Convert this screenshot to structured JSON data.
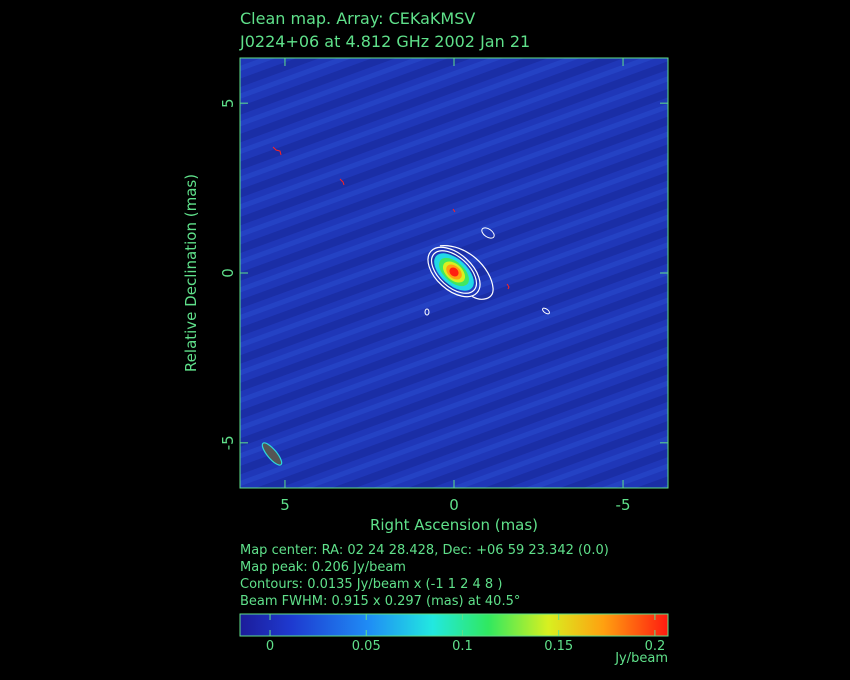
{
  "chart_data": {
    "type": "image",
    "title": "Clean map.  Array: CEKaKMSV",
    "subtitle": "J0224+06 at 4.812 GHz 2002 Jan 21",
    "x_label": "Right Ascension  (mas)",
    "y_label": "Relative Declination  (mas)",
    "xlim": [
      6.33,
      -6.33
    ],
    "xticks": [
      5,
      0,
      -5
    ],
    "ylim": [
      -6.33,
      6.33
    ],
    "yticks": [
      -5,
      0,
      5
    ],
    "info": [
      "Map center:  RA: 02 24 28.428,  Dec: +06 59 23.342 (0.0)",
      "Map peak: 0.206 Jy/beam",
      "Contours: 0.0135 Jy/beam x (-1 1 2 4 8 )",
      "Beam FWHM: 0.915 x 0.297 (mas) at 40.5°"
    ],
    "colorbar": {
      "lim": [
        -0.0156,
        0.2068
      ],
      "ticks": [
        0,
        0.05,
        0.1,
        0.15,
        0.2
      ],
      "unit": "Jy/beam"
    }
  }
}
